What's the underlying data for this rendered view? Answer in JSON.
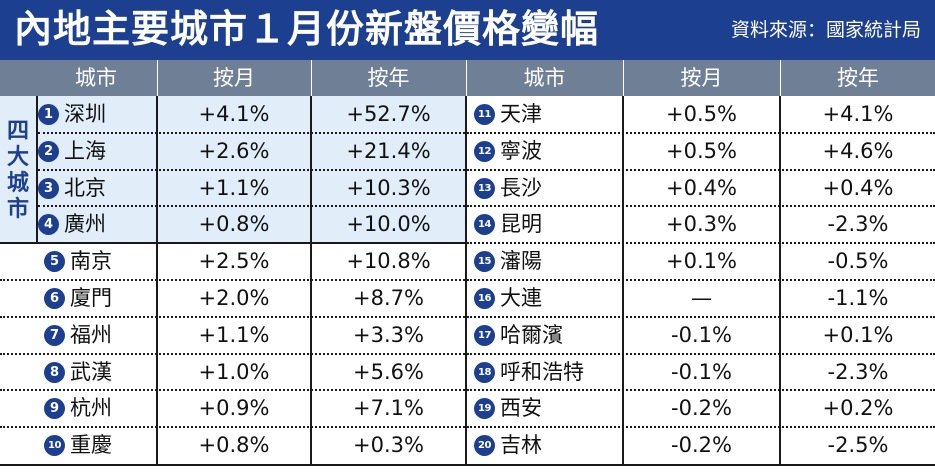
{
  "title": "內地主要城市１月份新盤價格變幅",
  "source": "資料來源：國家統計局",
  "headers": {
    "left": [
      "城市",
      "按月",
      "按年"
    ],
    "right": [
      "城市",
      "按月",
      "按年"
    ]
  },
  "group_label": [
    "四",
    "大",
    "城",
    "市"
  ],
  "left_rows": [
    {
      "num": "1",
      "city": "深圳",
      "mom": "+4.1%",
      "yoy": "+52.7%"
    },
    {
      "num": "2",
      "city": "上海",
      "mom": "+2.6%",
      "yoy": "+21.4%"
    },
    {
      "num": "3",
      "city": "北京",
      "mom": "+1.1%",
      "yoy": "+10.3%"
    },
    {
      "num": "4",
      "city": "廣州",
      "mom": "+0.8%",
      "yoy": "+10.0%"
    },
    {
      "num": "5",
      "city": "南京",
      "mom": "+2.5%",
      "yoy": "+10.8%"
    },
    {
      "num": "6",
      "city": "廈門",
      "mom": "+2.0%",
      "yoy": "+8.7%"
    },
    {
      "num": "7",
      "city": "福州",
      "mom": "+1.1%",
      "yoy": "+3.3%"
    },
    {
      "num": "8",
      "city": "武漢",
      "mom": "+1.0%",
      "yoy": "+5.6%"
    },
    {
      "num": "9",
      "city": "杭州",
      "mom": "+0.9%",
      "yoy": "+7.1%"
    },
    {
      "num": "10",
      "city": "重慶",
      "mom": "+0.8%",
      "yoy": "+0.3%"
    }
  ],
  "right_rows": [
    {
      "num": "11",
      "city": "天津",
      "mom": "+0.5%",
      "yoy": "+4.1%"
    },
    {
      "num": "12",
      "city": "寧波",
      "mom": "+0.5%",
      "yoy": "+4.6%"
    },
    {
      "num": "13",
      "city": "長沙",
      "mom": "+0.4%",
      "yoy": "+0.4%"
    },
    {
      "num": "14",
      "city": "昆明",
      "mom": "+0.3%",
      "yoy": "-2.3%"
    },
    {
      "num": "15",
      "city": "瀋陽",
      "mom": "+0.1%",
      "yoy": "-0.5%"
    },
    {
      "num": "16",
      "city": "大連",
      "mom": "—",
      "yoy": "-1.1%"
    },
    {
      "num": "17",
      "city": "哈爾濱",
      "mom": "-0.1%",
      "yoy": "+0.1%"
    },
    {
      "num": "18",
      "city": "呼和浩特",
      "mom": "-0.1%",
      "yoy": "-2.3%"
    },
    {
      "num": "19",
      "city": "西安",
      "mom": "-0.2%",
      "yoy": "+0.2%"
    },
    {
      "num": "20",
      "city": "吉林",
      "mom": "-0.2%",
      "yoy": "-2.5%"
    }
  ],
  "colors": {
    "title_bg": "#1d3f8f",
    "header_bg": "#6f8096",
    "highlight_bg": "#e1eefa",
    "badge": "#1d3f8f"
  }
}
